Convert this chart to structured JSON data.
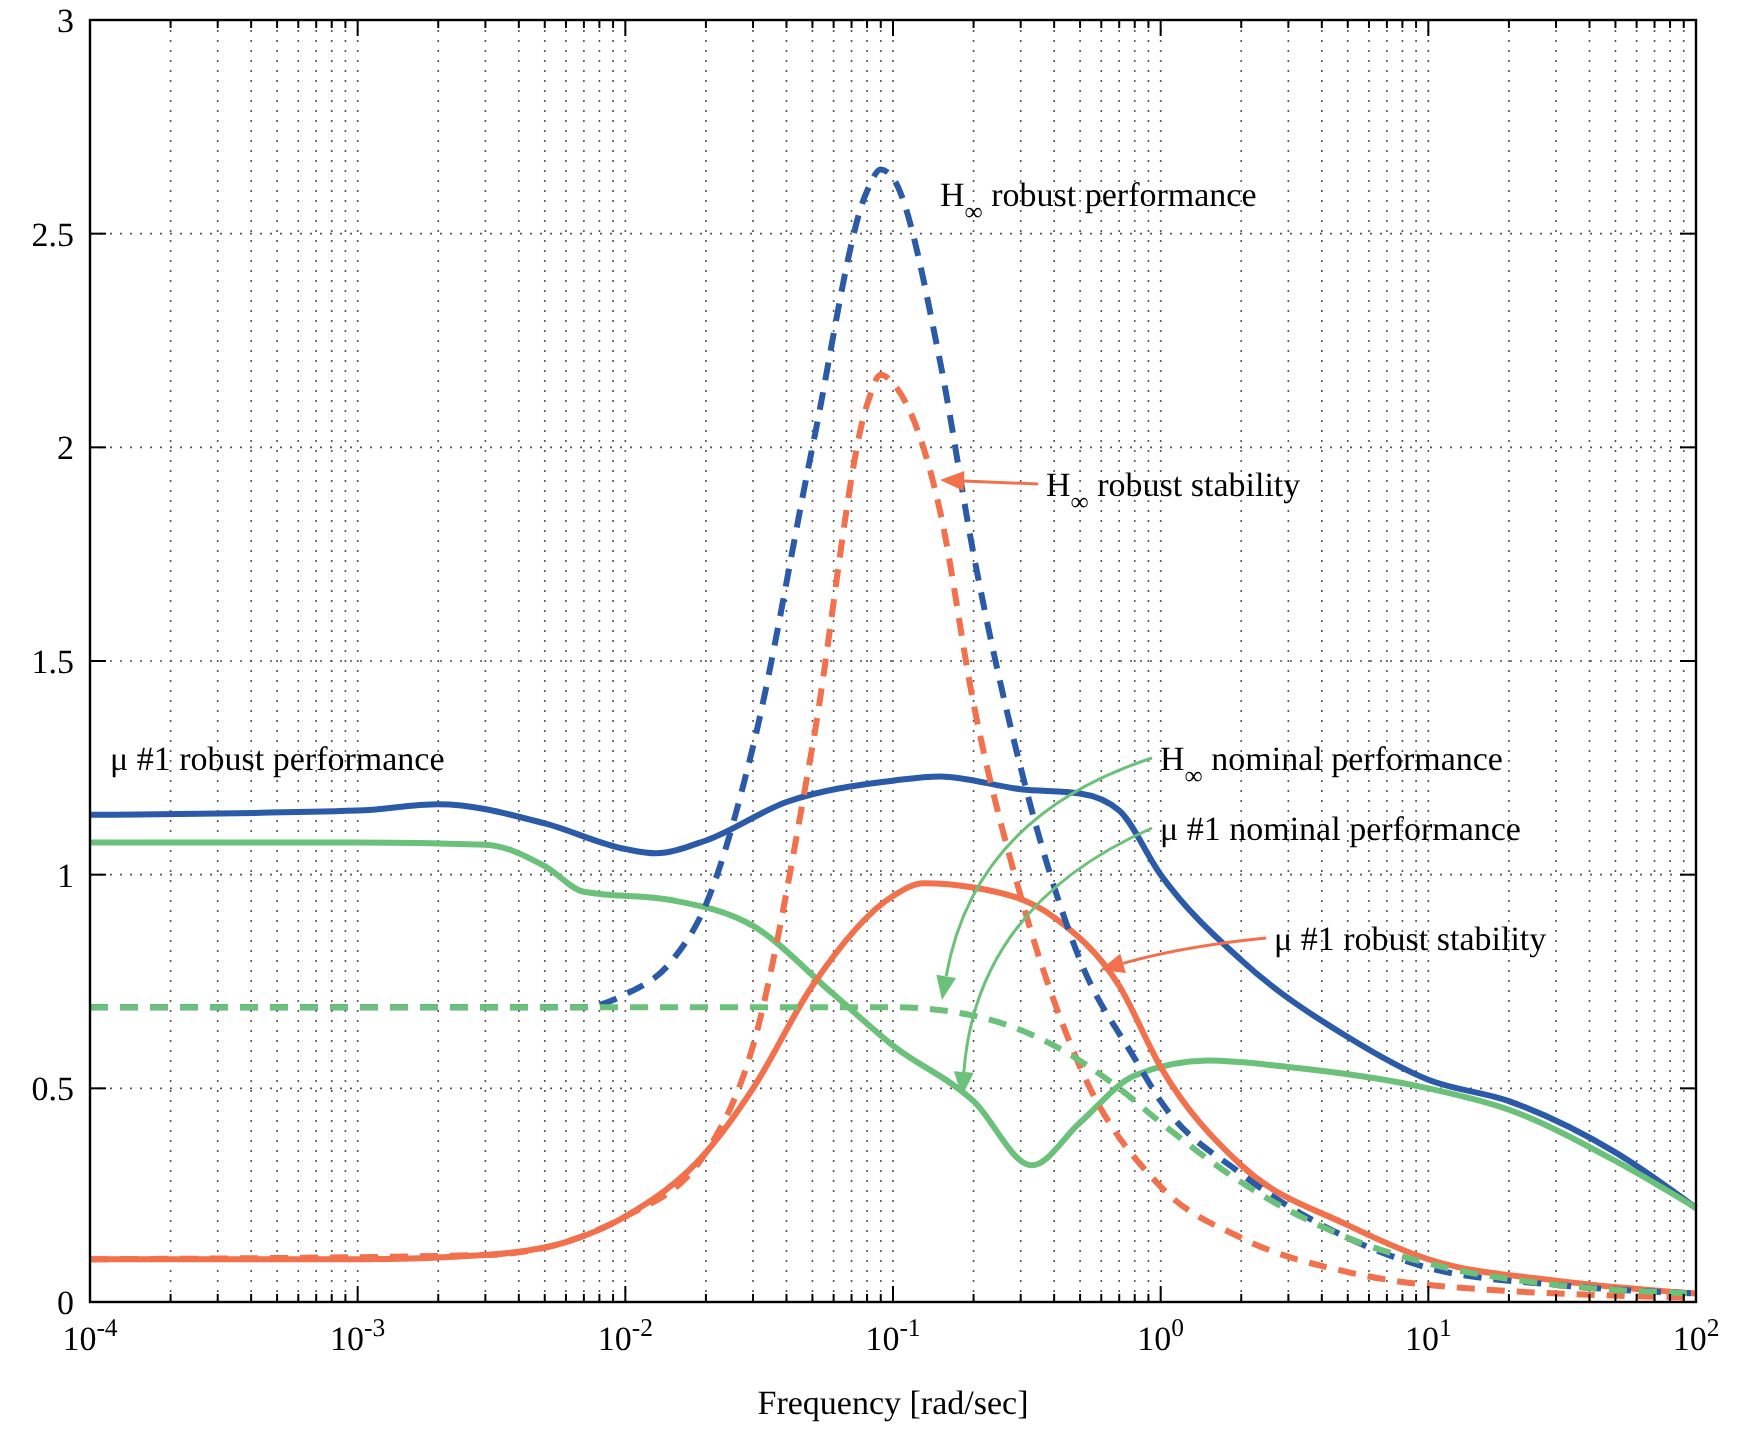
{
  "chart_data": {
    "type": "line",
    "xlabel": "Frequency [rad/sec]",
    "log": "x",
    "grid": true,
    "xlim": [
      0.0001,
      100
    ],
    "ylim": [
      0,
      3
    ],
    "xticks": [
      {
        "value": 0.0001,
        "label": "10$^{-4}$"
      },
      {
        "value": 0.001,
        "label": "10$^{-3}$"
      },
      {
        "value": 0.01,
        "label": "10$^{-2}$"
      },
      {
        "value": 0.1,
        "label": "10$^{-1}$"
      },
      {
        "value": 1,
        "label": "10$^{0}$"
      },
      {
        "value": 10,
        "label": "10$^{1}$"
      },
      {
        "value": 100,
        "label": "10$^{2}$"
      }
    ],
    "yticks": [
      0,
      0.5,
      1,
      1.5,
      2,
      2.5,
      3
    ],
    "series": [
      {
        "color": "#2b5aa8",
        "line_style": "solid",
        "x": [
          0.0001,
          0.001,
          0.002,
          0.005,
          0.01,
          0.013,
          0.02,
          0.04,
          0.1,
          0.15,
          0.3,
          0.5,
          0.7,
          1,
          2,
          5,
          10,
          20,
          50,
          100
        ],
        "values": [
          1.14,
          1.15,
          1.165,
          1.12,
          1.06,
          1.05,
          1.08,
          1.17,
          1.22,
          1.23,
          1.2,
          1.19,
          1.15,
          1.0,
          0.8,
          0.62,
          0.52,
          0.47,
          0.35,
          0.22
        ]
      },
      {
        "color": "#6cc17a",
        "line_style": "solid",
        "x": [
          0.0001,
          0.001,
          0.003,
          0.005,
          0.007,
          0.015,
          0.03,
          0.06,
          0.1,
          0.2,
          0.33,
          0.5,
          0.8,
          1.5,
          3,
          10,
          20,
          50,
          100
        ],
        "values": [
          1.075,
          1.075,
          1.07,
          1.02,
          0.96,
          0.94,
          0.88,
          0.72,
          0.6,
          0.47,
          0.32,
          0.42,
          0.53,
          0.565,
          0.55,
          0.5,
          0.45,
          0.33,
          0.22
        ]
      },
      {
        "color": "#f2704b",
        "line_style": "solid",
        "x": [
          0.0001,
          0.001,
          0.003,
          0.006,
          0.01,
          0.02,
          0.03,
          0.05,
          0.1,
          0.13,
          0.2,
          0.4,
          0.7,
          1,
          2,
          5,
          10,
          30,
          100
        ],
        "values": [
          0.1,
          0.1,
          0.11,
          0.14,
          0.2,
          0.35,
          0.5,
          0.74,
          0.95,
          0.98,
          0.97,
          0.9,
          0.74,
          0.55,
          0.32,
          0.18,
          0.1,
          0.05,
          0.02
        ]
      },
      {
        "color": "#2b5aa8",
        "line_style": "dashed",
        "x": [
          0.0001,
          0.007,
          0.01,
          0.015,
          0.02,
          0.03,
          0.05,
          0.08,
          0.09,
          0.1,
          0.15,
          0.2,
          0.3,
          0.5,
          0.8,
          1,
          2,
          5,
          10,
          30,
          100
        ],
        "values": [
          0.69,
          0.69,
          0.72,
          0.8,
          0.93,
          1.3,
          2.0,
          2.6,
          2.65,
          2.63,
          2.2,
          1.75,
          1.25,
          0.8,
          0.57,
          0.47,
          0.3,
          0.15,
          0.08,
          0.04,
          0.02
        ]
      },
      {
        "color": "#f2704b",
        "line_style": "dashed",
        "x": [
          0.0001,
          0.003,
          0.01,
          0.02,
          0.03,
          0.05,
          0.08,
          0.09,
          0.1,
          0.15,
          0.2,
          0.3,
          0.5,
          1,
          2,
          5,
          10,
          100
        ],
        "values": [
          0.1,
          0.11,
          0.2,
          0.35,
          0.6,
          1.3,
          2.1,
          2.17,
          2.15,
          1.85,
          1.4,
          0.95,
          0.55,
          0.27,
          0.15,
          0.07,
          0.04,
          0.01
        ]
      },
      {
        "color": "#6cc17a",
        "line_style": "dashed",
        "x": [
          0.0001,
          0.01,
          0.1,
          0.2,
          0.4,
          0.7,
          1,
          2,
          5,
          10,
          30,
          100
        ],
        "values": [
          0.69,
          0.69,
          0.69,
          0.67,
          0.6,
          0.5,
          0.42,
          0.28,
          0.15,
          0.09,
          0.04,
          0.02
        ]
      }
    ],
    "annotations": [
      "μ #1 robust performance",
      "H$_{∞}$ robust performance",
      "H$_{∞}$ robust stability",
      "H$_{∞}$ nominal performance",
      "μ #1 nominal performance",
      "μ #1 robust stability"
    ]
  }
}
